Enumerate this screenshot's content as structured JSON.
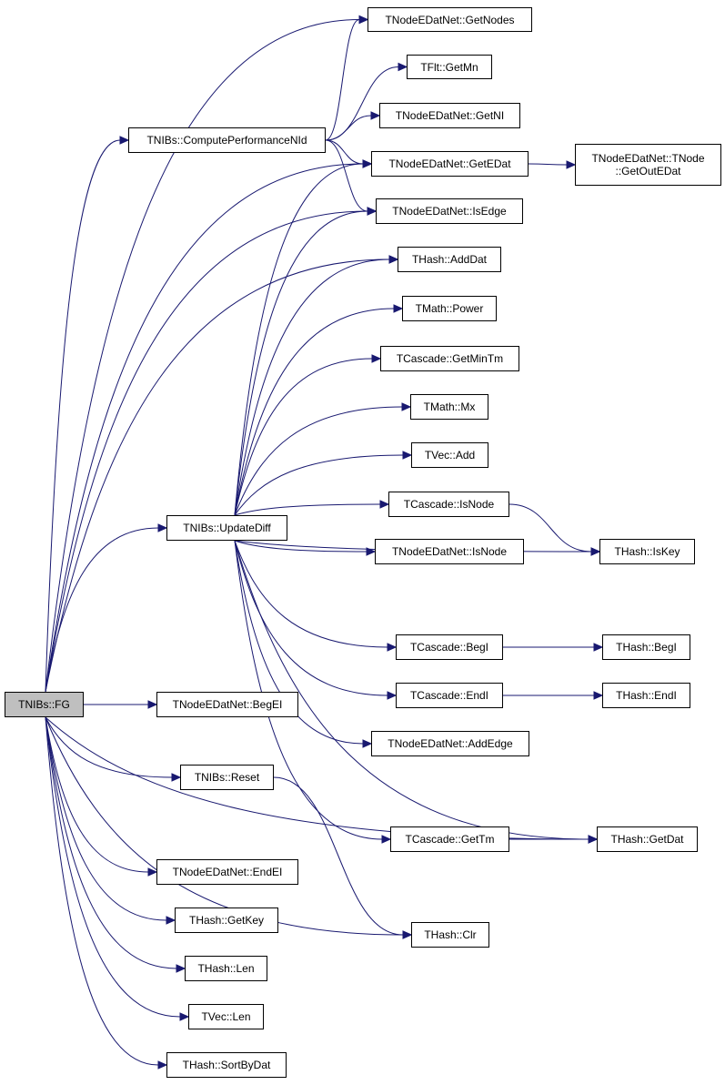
{
  "graph": {
    "edge_color": "#191970",
    "root_fill": "#bfbfbf",
    "nodes": {
      "fg": "TNIBs::FG",
      "cpn": "TNIBs::ComputePerformanceNId",
      "upd": "TNIBs::UpdateDiff",
      "reset": "TNIBs::Reset",
      "getnodes": "TNodeEDatNet::GetNodes",
      "getmn": "TFlt::GetMn",
      "getni": "TNodeEDatNet::GetNI",
      "getedat": "TNodeEDatNet::GetEDat",
      "getoutedat": "TNodeEDatNet::TNode\n::GetOutEDat",
      "isedge": "TNodeEDatNet::IsEdge",
      "adddat": "THash::AddDat",
      "power": "TMath::Power",
      "getmintm": "TCascade::GetMinTm",
      "mx": "TMath::Mx",
      "vadd": "TVec::Add",
      "cisnode": "TCascade::IsNode",
      "nisnode": "TNodeEDatNet::IsNode",
      "iskey": "THash::IsKey",
      "cbegi": "TCascade::BegI",
      "hbegi": "THash::BegI",
      "cendi": "TCascade::EndI",
      "hendi": "THash::EndI",
      "begei": "TNodeEDatNet::BegEI",
      "addedge": "TNodeEDatNet::AddEdge",
      "gettm": "TCascade::GetTm",
      "getdat": "THash::GetDat",
      "endei": "TNodeEDatNet::EndEI",
      "clr": "THash::Clr",
      "getkey": "THash::GetKey",
      "hlen": "THash::Len",
      "vlen": "TVec::Len",
      "sortbydat": "THash::SortByDat"
    },
    "edges": [
      [
        "fg",
        "getnodes"
      ],
      [
        "fg",
        "cpn"
      ],
      [
        "fg",
        "getedat"
      ],
      [
        "fg",
        "isedge"
      ],
      [
        "fg",
        "adddat"
      ],
      [
        "fg",
        "upd"
      ],
      [
        "fg",
        "begei"
      ],
      [
        "fg",
        "reset"
      ],
      [
        "fg",
        "getdat"
      ],
      [
        "fg",
        "endei"
      ],
      [
        "fg",
        "getkey"
      ],
      [
        "fg",
        "hlen"
      ],
      [
        "fg",
        "vlen"
      ],
      [
        "fg",
        "sortbydat"
      ],
      [
        "fg",
        "clr"
      ],
      [
        "cpn",
        "getnodes"
      ],
      [
        "cpn",
        "getmn"
      ],
      [
        "cpn",
        "getni"
      ],
      [
        "cpn",
        "getedat"
      ],
      [
        "cpn",
        "isedge"
      ],
      [
        "getedat",
        "getoutedat"
      ],
      [
        "upd",
        "getedat"
      ],
      [
        "upd",
        "isedge"
      ],
      [
        "upd",
        "adddat"
      ],
      [
        "upd",
        "power"
      ],
      [
        "upd",
        "getmintm"
      ],
      [
        "upd",
        "mx"
      ],
      [
        "upd",
        "vadd"
      ],
      [
        "upd",
        "cisnode"
      ],
      [
        "upd",
        "nisnode"
      ],
      [
        "upd",
        "iskey"
      ],
      [
        "upd",
        "cbegi"
      ],
      [
        "upd",
        "cendi"
      ],
      [
        "upd",
        "addedge"
      ],
      [
        "upd",
        "gettm"
      ],
      [
        "upd",
        "getdat"
      ],
      [
        "reset",
        "clr"
      ],
      [
        "cisnode",
        "iskey"
      ],
      [
        "cbegi",
        "hbegi"
      ],
      [
        "cendi",
        "hendi"
      ],
      [
        "gettm",
        "getdat"
      ]
    ]
  }
}
